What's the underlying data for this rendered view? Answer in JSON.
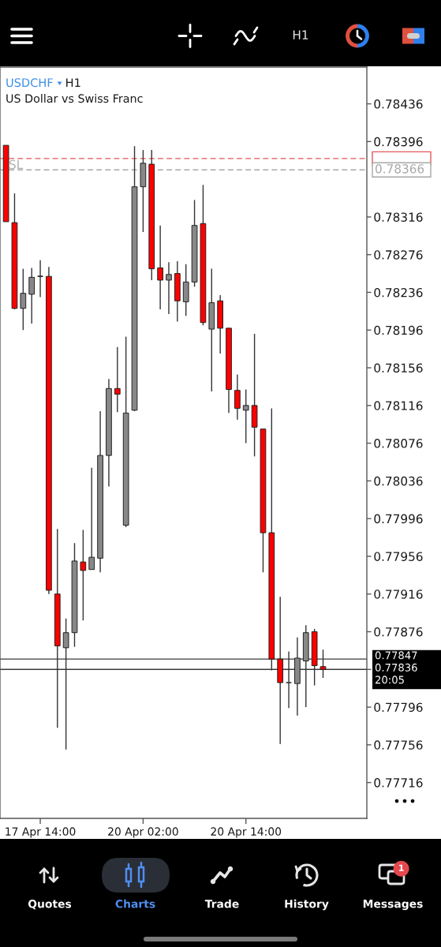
{
  "chart_data": {
    "type": "candlestick",
    "title": "USDCHF",
    "subtitle": "US Dollar vs Swiss Franc",
    "annotations": [
      "H1",
      "20:05",
      "H1",
      "Quotes",
      "Charts",
      "Trade",
      "History",
      "Messages",
      "1"
    ],
    "categories": [
      null,
      null,
      null,
      null,
      "17 Apr 14:00",
      null,
      null,
      null,
      null,
      null,
      null,
      null,
      null,
      null,
      null,
      null,
      "20 Apr 02:00",
      null,
      null,
      null,
      null,
      null,
      null,
      null,
      null,
      null,
      null,
      null,
      "20 Apr 14:00",
      null,
      null,
      null,
      null,
      null,
      null,
      null,
      null,
      null
    ],
    "ohlc": [
      [
        0.78392,
        0.78392,
        0.78311,
        0.78311
      ],
      [
        0.7831,
        0.78341,
        0.78218,
        0.78219
      ],
      [
        0.78219,
        0.78261,
        0.78196,
        0.78235
      ],
      [
        0.78234,
        0.78262,
        0.78203,
        0.78252
      ],
      [
        0.78253,
        0.7827,
        0.78231,
        0.78253
      ],
      [
        0.78253,
        0.78263,
        0.77916,
        0.7792
      ],
      [
        0.77916,
        0.77985,
        0.77774,
        0.77861
      ],
      [
        0.77859,
        0.7789,
        0.77751,
        0.77875
      ],
      [
        0.77875,
        0.7797,
        0.7786,
        0.77951
      ],
      [
        0.7795,
        0.77984,
        0.77888,
        0.77941
      ],
      [
        0.77942,
        0.7805,
        0.77942,
        0.77955
      ],
      [
        0.77954,
        0.7811,
        0.77939,
        0.78063
      ],
      [
        0.78063,
        0.78144,
        0.7803,
        0.78134
      ],
      [
        0.78134,
        0.78178,
        0.78109,
        0.78128
      ],
      [
        0.77989,
        0.78189,
        0.77987,
        0.78108
      ],
      [
        0.78111,
        0.78391,
        0.7811,
        0.78348
      ],
      [
        0.78348,
        0.78387,
        0.783,
        0.78373
      ],
      [
        0.78372,
        0.78387,
        0.78249,
        0.78261
      ],
      [
        0.78262,
        0.78307,
        0.78218,
        0.78249
      ],
      [
        0.78249,
        0.78268,
        0.78213,
        0.78255
      ],
      [
        0.78256,
        0.78269,
        0.78205,
        0.78227
      ],
      [
        0.78226,
        0.78266,
        0.78211,
        0.78247
      ],
      [
        0.78247,
        0.78334,
        0.78242,
        0.78307
      ],
      [
        0.78309,
        0.7835,
        0.78201,
        0.78204
      ],
      [
        0.78197,
        0.78261,
        0.78131,
        0.78225
      ],
      [
        0.78227,
        0.78233,
        0.78171,
        0.78198
      ],
      [
        0.78198,
        0.78198,
        0.78108,
        0.78133
      ],
      [
        0.78132,
        0.78149,
        0.78101,
        0.78113
      ],
      [
        0.78111,
        0.78133,
        0.78076,
        0.78116
      ],
      [
        0.78116,
        0.78192,
        0.78062,
        0.78093
      ],
      [
        0.78091,
        0.78091,
        0.77939,
        0.77981
      ],
      [
        0.77981,
        0.78113,
        0.77835,
        0.77847
      ],
      [
        0.77847,
        0.77913,
        0.77757,
        0.77822
      ],
      [
        0.77822,
        0.77855,
        0.77795,
        0.77822
      ],
      [
        0.77821,
        0.7787,
        0.77787,
        0.77848
      ],
      [
        0.77845,
        0.77883,
        0.77796,
        0.77875
      ],
      [
        0.77876,
        0.77879,
        0.77819,
        0.7784
      ],
      [
        0.77839,
        0.77857,
        0.77827,
        0.77836
      ]
    ],
    "colors": [
      "#ff0000",
      "#ff0000",
      "#888888",
      "#888888",
      "#2a2a2a",
      "#ff0000",
      "#ff0000",
      "#888888",
      "#888888",
      "#ff0000",
      "#888888",
      "#888888",
      "#888888",
      "#ff0000",
      "#888888",
      "#888888",
      "#888888",
      "#ff0000",
      "#ff0000",
      "#888888",
      "#ff0000",
      "#888888",
      "#888888",
      "#ff0000",
      "#888888",
      "#ff0000",
      "#ff0000",
      "#ff0000",
      "#888888",
      "#ff0000",
      "#ff0000",
      "#ff0000",
      "#ff0000",
      "#2a2a2a",
      "#888888",
      "#888888",
      "#ff0000",
      "#ff0000"
    ],
    "ylim": [
      0.77678,
      0.78475
    ],
    "yticks": [
      0.77716,
      0.77756,
      0.77796,
      {
        "value": 0.77836,
        "label": null
      },
      0.77876,
      0.77916,
      0.77956,
      0.77996,
      0.78036,
      0.78076,
      0.78116,
      0.78156,
      0.78196,
      0.78236,
      0.78276,
      0.78316,
      0.78396,
      0.78436
    ],
    "ref_lines": [
      {
        "axis": "y",
        "value": 0.78378,
        "label": "SL",
        "color": "#e4575b",
        "line_style": "dashed"
      },
      {
        "axis": "y",
        "value": 0.78366,
        "label": "0.78366",
        "color": "#a8a8a8",
        "line_style": "dashed"
      },
      {
        "axis": "y",
        "value": 0.77847,
        "label": "0.77847",
        "color": "#3a3a3a",
        "line_style": "solid"
      },
      {
        "axis": "y",
        "value": 0.77836,
        "label": "0.77836",
        "color": "#3a3a3a",
        "line_style": "solid"
      }
    ]
  }
}
